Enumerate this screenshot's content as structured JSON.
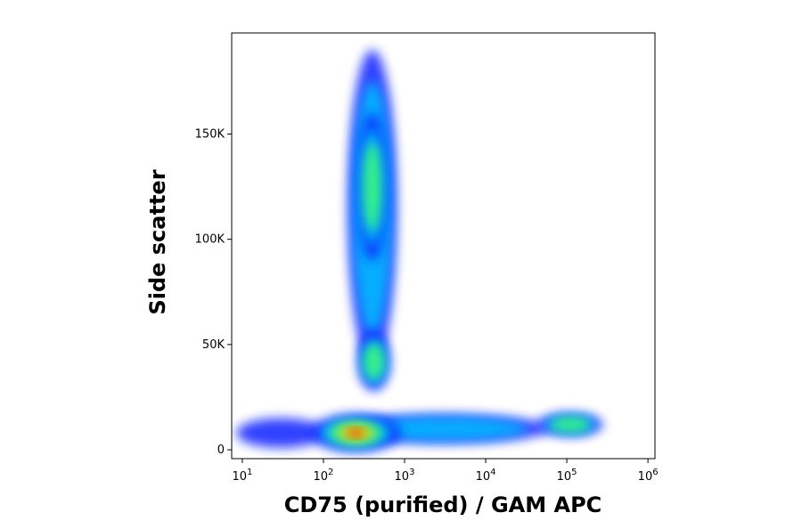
{
  "chart_data": {
    "type": "density",
    "xlabel": "CD75 (purified) / GAM APC",
    "ylabel": "Side scatter",
    "xscale": "log",
    "xlim": [
      7.4,
      1220000
    ],
    "ylim": [
      -4200,
      198000
    ],
    "xticks": [
      {
        "value": 10,
        "label": "10",
        "exponent": "1"
      },
      {
        "value": 100,
        "label": "10",
        "exponent": "2"
      },
      {
        "value": 1000,
        "label": "10",
        "exponent": "3"
      },
      {
        "value": 10000,
        "label": "10",
        "exponent": "4"
      },
      {
        "value": 100000,
        "label": "10",
        "exponent": "5"
      },
      {
        "value": 1000000,
        "label": "10",
        "exponent": "6"
      }
    ],
    "yticks": [
      0,
      {
        "value": 50000,
        "label": "50K"
      },
      {
        "value": 100000,
        "label": "100K"
      },
      {
        "value": 150000,
        "label": "150K"
      }
    ],
    "colors": [
      "#1020ff",
      "#00c0ff",
      "#40ff70",
      "#ffe000",
      "#ff1000"
    ],
    "populations": [
      {
        "x": 30,
        "y": 8000,
        "sx": 0.55,
        "sy": 7000,
        "level": 1
      },
      {
        "x": 3000,
        "y": 10000,
        "sx": 1.3,
        "sy": 7000,
        "level": 2
      },
      {
        "x": 400,
        "y": 115000,
        "sx": 0.3,
        "sy": 75000,
        "level": 2
      },
      {
        "x": 400,
        "y": 125000,
        "sx": 0.18,
        "sy": 35000,
        "level": 3
      },
      {
        "x": 420,
        "y": 42000,
        "sx": 0.2,
        "sy": 14000,
        "level": 3
      },
      {
        "x": 250,
        "y": 8000,
        "sx": 0.55,
        "sy": 9000,
        "level": 5
      },
      {
        "x": 110000,
        "y": 12000,
        "sx": 0.4,
        "sy": 5500,
        "level": 3
      }
    ]
  }
}
